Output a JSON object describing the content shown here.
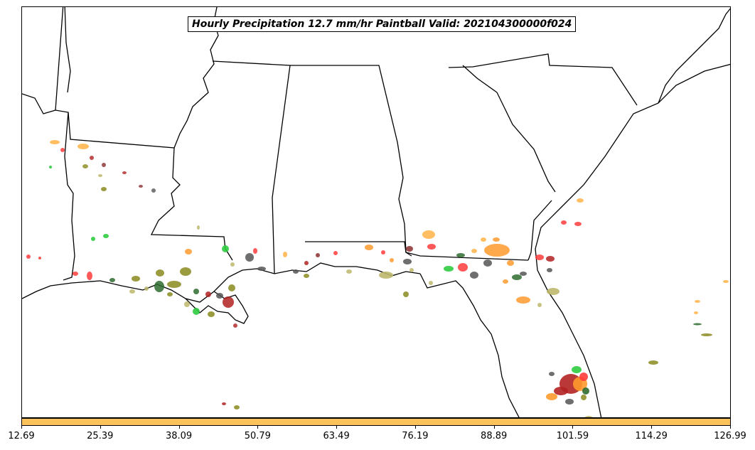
{
  "title": "Hourly Precipitation 12.7 mm/hr Paintball Valid: 202104300000f024",
  "colorbar": {
    "color": "#FFC35E",
    "ticks": [
      "12.69",
      "25.39",
      "38.09",
      "50.79",
      "63.49",
      "76.19",
      "88.89",
      "101.59",
      "114.29",
      "126.99"
    ]
  },
  "colors": {
    "orange": "#FF9A2E",
    "light_orange": "#FFB347",
    "red": "#FF3B3B",
    "dark_red": "#B22222",
    "green": "#2ECC40",
    "dark_green": "#2E6B2E",
    "olive": "#8A8A1E",
    "khaki": "#BDB76B",
    "gray": "#555555",
    "maroon": "#8B2E2E"
  }
}
